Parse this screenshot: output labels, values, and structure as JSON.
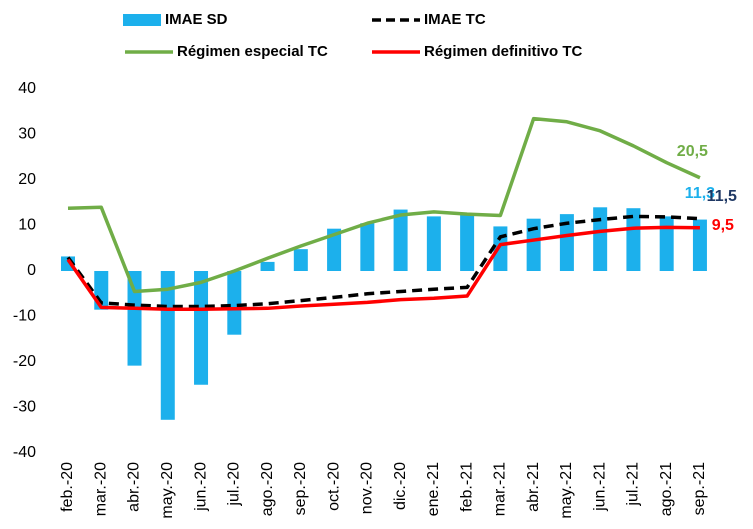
{
  "chart_data": {
    "type": "bar_line",
    "categories": [
      "feb.-20",
      "mar.-20",
      "abr.-20",
      "may.-20",
      "jun.-20",
      "jul.-20",
      "ago.-20",
      "sep.-20",
      "oct.-20",
      "nov.-20",
      "dic.-20",
      "ene.-21",
      "feb.-21",
      "mar.-21",
      "abr.-21",
      "may.-21",
      "jun.-21",
      "jul.-21",
      "ago.-21",
      "sep.-21"
    ],
    "series": [
      {
        "name": "IMAE SD",
        "type": "bar",
        "color": "#1cb0ec",
        "values": [
          3.2,
          -8.5,
          -20.8,
          -32.7,
          -25,
          -14,
          2,
          4.8,
          9.3,
          10.5,
          13.5,
          12,
          12.5,
          9.8,
          11.5,
          12.5,
          14,
          13.8,
          12,
          11.3
        ],
        "value_labels": [
          null,
          null,
          null,
          null,
          null,
          null,
          null,
          null,
          null,
          null,
          null,
          null,
          null,
          null,
          null,
          null,
          null,
          null,
          null,
          "11,3"
        ]
      },
      {
        "name": "IMAE TC",
        "type": "line",
        "dashed": true,
        "color": "#000000",
        "label_color": "#1f3864",
        "values": [
          3,
          -7,
          -7.5,
          -7.8,
          -7.8,
          -7.6,
          -7.2,
          -6.5,
          -5.8,
          -5,
          -4.5,
          -4,
          -3.6,
          7.5,
          9.3,
          10.5,
          11.3,
          12,
          11.9,
          11.5
        ],
        "value_labels": [
          null,
          null,
          null,
          null,
          null,
          null,
          null,
          null,
          null,
          null,
          null,
          null,
          null,
          null,
          null,
          null,
          null,
          null,
          null,
          "11,5"
        ]
      },
      {
        "name": "Régimen especial TC",
        "type": "line",
        "color": "#70ad47",
        "values": [
          13.8,
          14,
          -4.5,
          -4,
          -2.5,
          0,
          2.8,
          5.5,
          8,
          10.5,
          12.3,
          13,
          12.5,
          12.2,
          33.5,
          32.8,
          30.8,
          27.5,
          23.8,
          20.5
        ],
        "value_labels": [
          null,
          null,
          null,
          null,
          null,
          null,
          null,
          null,
          null,
          null,
          null,
          null,
          null,
          null,
          null,
          null,
          null,
          null,
          null,
          "20,5"
        ]
      },
      {
        "name": "Régimen definitivo TC",
        "type": "line",
        "color": "#ff0000",
        "values": [
          2.5,
          -8,
          -8.2,
          -8.4,
          -8.4,
          -8.3,
          -8.2,
          -7.7,
          -7.3,
          -6.9,
          -6.3,
          -6,
          -5.5,
          5.8,
          6.8,
          7.8,
          8.7,
          9.4,
          9.6,
          9.5
        ],
        "value_labels": [
          null,
          null,
          null,
          null,
          null,
          null,
          null,
          null,
          null,
          null,
          null,
          null,
          null,
          null,
          null,
          null,
          null,
          null,
          null,
          "9,5"
        ]
      }
    ],
    "ylim": [
      -40,
      40
    ],
    "yticks": [
      -40,
      -30,
      -20,
      -10,
      0,
      10,
      20,
      30,
      40
    ],
    "grid": false,
    "legend": "top"
  }
}
